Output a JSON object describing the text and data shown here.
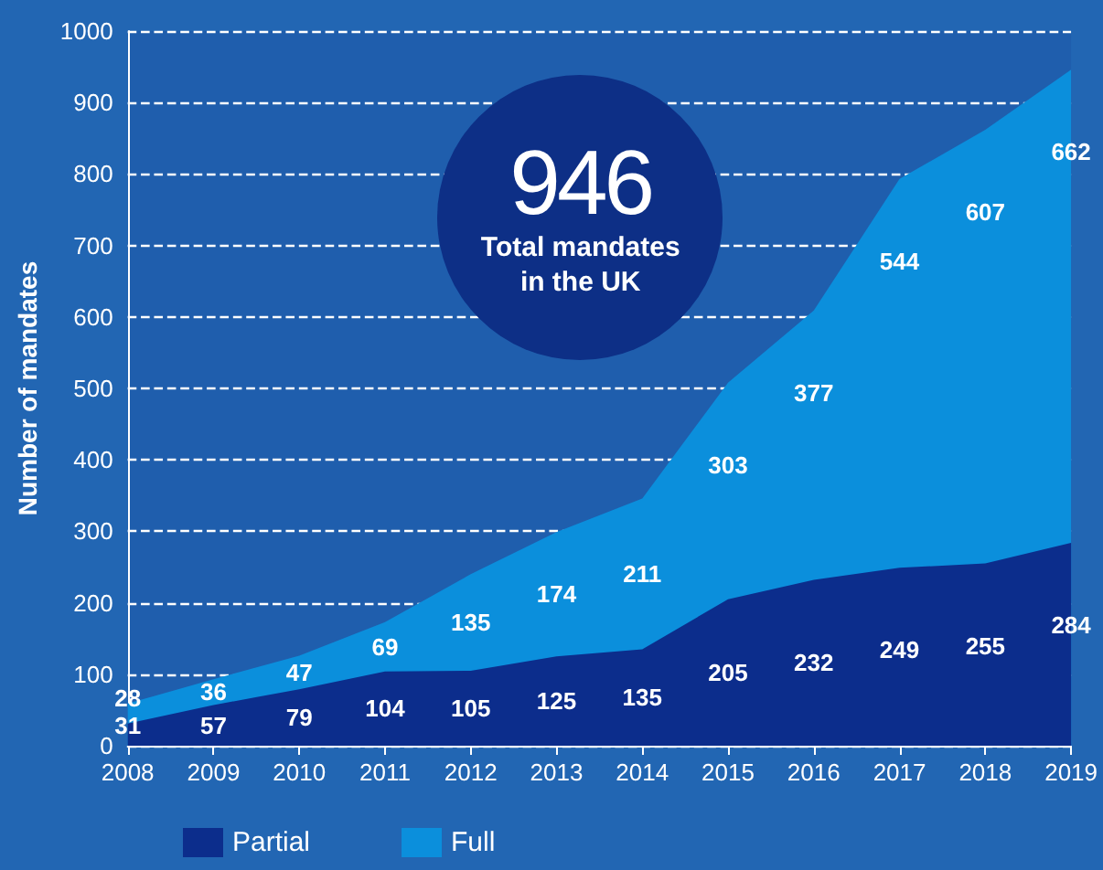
{
  "chart_data": {
    "type": "area",
    "ylabel": "Number of mandates",
    "x": [
      2008,
      2009,
      2010,
      2011,
      2012,
      2013,
      2014,
      2015,
      2016,
      2017,
      2018,
      2019
    ],
    "xlim": [
      2008,
      2019
    ],
    "xticks": [
      2008,
      2009,
      2010,
      2011,
      2012,
      2013,
      2014,
      2015,
      2016,
      2017,
      2018,
      2019
    ],
    "ylim": [
      0,
      1000
    ],
    "yticks": [
      0,
      100,
      200,
      300,
      400,
      500,
      600,
      700,
      800,
      900,
      1000
    ],
    "stacked": true,
    "data_labels": true,
    "grid": "y",
    "legend": "bottom left",
    "series": [
      {
        "name": "Partial",
        "color": "#0c2d8c",
        "values": [
          31,
          57,
          79,
          104,
          105,
          125,
          135,
          205,
          232,
          249,
          255,
          284
        ]
      },
      {
        "name": "Full",
        "color": "#0b8fdc",
        "values": [
          28,
          36,
          47,
          69,
          135,
          174,
          211,
          303,
          377,
          544,
          607,
          662
        ]
      }
    ],
    "annotations": [
      "946",
      "Total mandates in the UK"
    ]
  }
}
